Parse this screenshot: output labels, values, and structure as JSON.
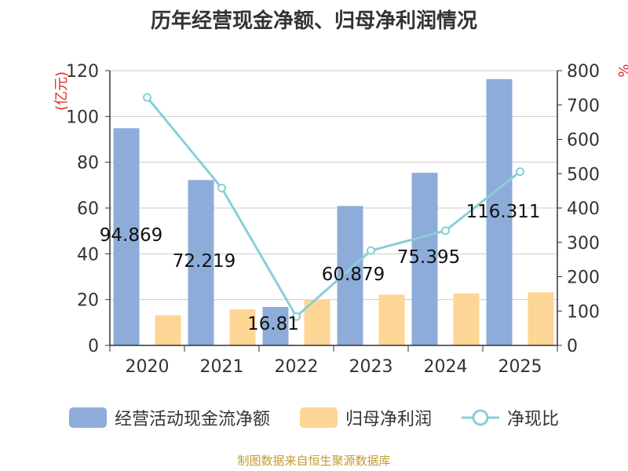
{
  "chart_data": {
    "type": "bar",
    "title": "历年经营现金净额、归母净利润情况",
    "categories": [
      "2020",
      "2021",
      "2022",
      "2023",
      "2024",
      "2025"
    ],
    "series": [
      {
        "name": "经营活动现金流净额",
        "type": "bar",
        "axis": "left",
        "values": [
          94.869,
          72.219,
          16.81,
          60.879,
          75.395,
          116.311
        ],
        "labels": [
          "94.869",
          "72.219",
          "16.81",
          "60.879",
          "75.395",
          "116.311"
        ]
      },
      {
        "name": "归母净利润",
        "type": "bar",
        "axis": "left",
        "values": [
          13.2,
          15.8,
          20.2,
          22.2,
          22.7,
          23.2
        ]
      },
      {
        "name": "净现比",
        "type": "line",
        "axis": "right",
        "values": [
          722,
          458,
          84,
          276,
          334,
          506
        ]
      }
    ],
    "y_left": {
      "label": "(亿元)",
      "min": 0,
      "max": 120,
      "step": 20,
      "ticks": [
        "0",
        "20",
        "40",
        "60",
        "80",
        "100",
        "120"
      ]
    },
    "y_right": {
      "label": "%",
      "min": 0,
      "max": 800,
      "step": 100,
      "ticks": [
        "0",
        "100",
        "200",
        "300",
        "400",
        "500",
        "600",
        "700",
        "800"
      ]
    },
    "legend_position": "bottom",
    "colors": {
      "bar1": "#8eacd9",
      "bar2": "#fdd695",
      "line": "#86d0d8",
      "axis_label_red": "#e0302a",
      "grid": "#cccccc",
      "text": "#333333"
    }
  },
  "source_note": "制图数据来自恒生聚源数据库"
}
